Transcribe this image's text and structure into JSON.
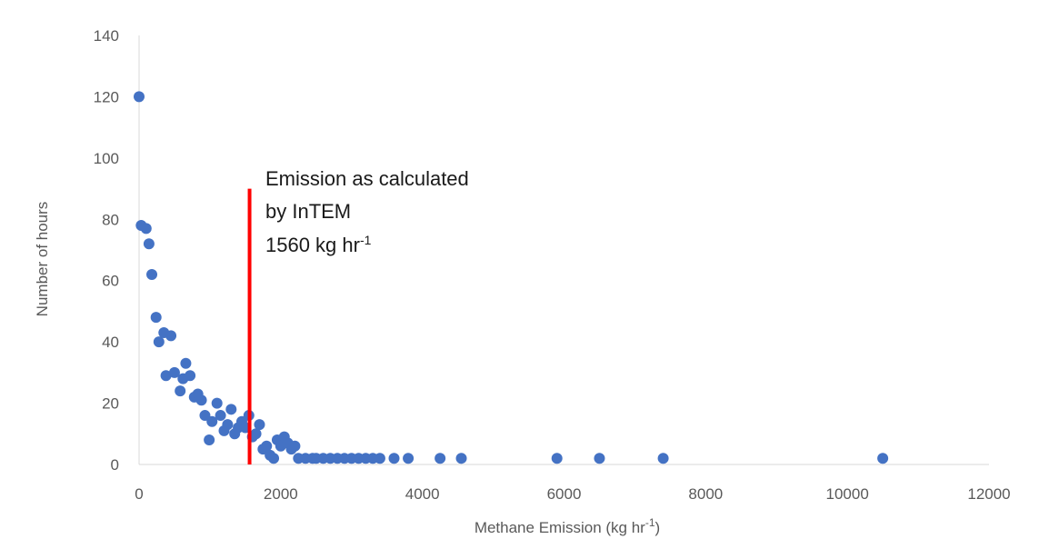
{
  "chart_data": {
    "type": "scatter",
    "title": "",
    "xlabel_main": "Methane Emission (kg hr",
    "xlabel_sup": "-1",
    "xlabel_end": ")",
    "ylabel": "Number  of hours",
    "xlim": [
      0,
      12000
    ],
    "ylim": [
      0,
      140
    ],
    "xticks": [
      0,
      2000,
      4000,
      6000,
      8000,
      10000,
      12000
    ],
    "yticks": [
      0,
      20,
      40,
      60,
      80,
      100,
      120,
      140
    ],
    "grid": false,
    "legend": "none",
    "marker_color": "#4472C4",
    "series": [
      {
        "points": [
          [
            0,
            120
          ],
          [
            30,
            78
          ],
          [
            100,
            77
          ],
          [
            140,
            72
          ],
          [
            180,
            62
          ],
          [
            240,
            48
          ],
          [
            280,
            40
          ],
          [
            350,
            43
          ],
          [
            380,
            29
          ],
          [
            450,
            42
          ],
          [
            500,
            30
          ],
          [
            580,
            24
          ],
          [
            620,
            28
          ],
          [
            660,
            33
          ],
          [
            720,
            29
          ],
          [
            780,
            22
          ],
          [
            830,
            23
          ],
          [
            880,
            21
          ],
          [
            930,
            16
          ],
          [
            990,
            8
          ],
          [
            1030,
            14
          ],
          [
            1100,
            20
          ],
          [
            1150,
            16
          ],
          [
            1200,
            11
          ],
          [
            1250,
            13
          ],
          [
            1300,
            18
          ],
          [
            1350,
            10
          ],
          [
            1400,
            12
          ],
          [
            1450,
            14
          ],
          [
            1500,
            12
          ],
          [
            1550,
            16
          ],
          [
            1600,
            9
          ],
          [
            1650,
            10
          ],
          [
            1700,
            13
          ],
          [
            1750,
            5
          ],
          [
            1800,
            6
          ],
          [
            1850,
            3
          ],
          [
            1900,
            2
          ],
          [
            1950,
            8
          ],
          [
            2000,
            6
          ],
          [
            2050,
            9
          ],
          [
            2100,
            7
          ],
          [
            2150,
            5
          ],
          [
            2200,
            6
          ],
          [
            2250,
            2
          ],
          [
            2350,
            2
          ],
          [
            2450,
            2
          ],
          [
            2500,
            2
          ],
          [
            2600,
            2
          ],
          [
            2700,
            2
          ],
          [
            2800,
            2
          ],
          [
            2900,
            2
          ],
          [
            3000,
            2
          ],
          [
            3100,
            2
          ],
          [
            3200,
            2
          ],
          [
            3300,
            2
          ],
          [
            3400,
            2
          ],
          [
            3600,
            2
          ],
          [
            3800,
            2
          ],
          [
            4250,
            2
          ],
          [
            4550,
            2
          ],
          [
            5900,
            2
          ],
          [
            6500,
            2
          ],
          [
            7400,
            2
          ],
          [
            10500,
            2
          ]
        ]
      }
    ],
    "reference_line": {
      "x": 1560,
      "y_top": 90,
      "color": "#ff0000"
    },
    "annotation": {
      "line1": "Emission as calculated",
      "line2": "by InTEM",
      "line3_main": "1560 kg hr",
      "line3_sup": "-1"
    }
  }
}
